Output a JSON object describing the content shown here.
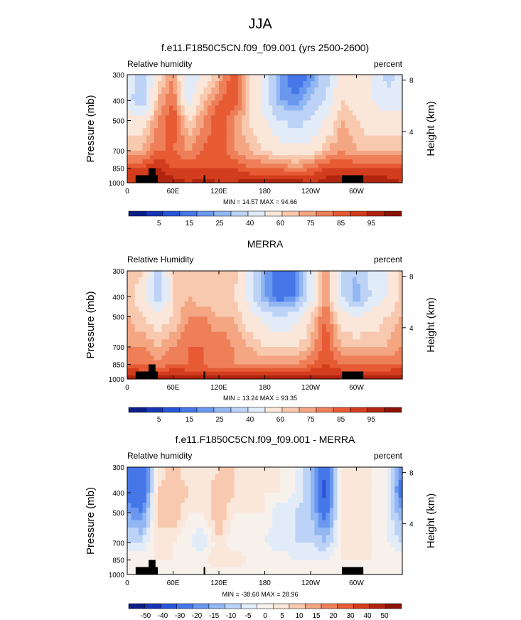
{
  "figure_title": "JJA",
  "colors": {
    "humidity_palette": [
      "#0c1f88",
      "#1734b4",
      "#2a55d8",
      "#4677e8",
      "#6a98ef",
      "#92b7f3",
      "#bcd2f6",
      "#e2ebf8",
      "#fbe6da",
      "#f8c9ae",
      "#f4a683",
      "#ee7f58",
      "#e65a34",
      "#d23d1d",
      "#b1250e",
      "#8a1206"
    ],
    "difference_palette": [
      "#0c1f88",
      "#1734b4",
      "#2a55d8",
      "#4677e8",
      "#6a98ef",
      "#92b7f3",
      "#bcd2f6",
      "#e2ebf8",
      "#f7f1ec",
      "#fbe6da",
      "#f8c9ae",
      "#f4a683",
      "#ee7f58",
      "#e65a34",
      "#d23d1d",
      "#b1250e",
      "#8a1206"
    ],
    "topography": "#000000"
  },
  "chart_data": [
    {
      "type": "heatmap",
      "title": "f.e11.F1850C5CN.f09_f09.001 (yrs 2500-2600)",
      "left_label": "Relative humidity",
      "right_label": "percent",
      "ylabel": "Pressure (mb)",
      "y2label": "Height (km)",
      "x_ticks": [
        "0",
        "60E",
        "120E",
        "180",
        "120W",
        "60W"
      ],
      "y_ticks": [
        "300",
        "400",
        "500",
        "700",
        "850",
        "1000"
      ],
      "y2_ticks": [
        "8",
        "4"
      ],
      "stats": "MIN = 14.57  MAX = 94.66",
      "min": 14.57,
      "max": 94.66,
      "colorbar_labels": [
        "5",
        "15",
        "25",
        "40",
        "60",
        "75",
        "85",
        "95"
      ],
      "colorbar_levels": [
        0,
        5,
        10,
        15,
        20,
        25,
        30,
        40,
        50,
        60,
        65,
        70,
        75,
        80,
        85,
        90,
        95,
        100
      ],
      "pressure_levels": [
        300,
        400,
        500,
        700,
        850,
        1000
      ],
      "grid": "lon 0-360 (15 deg) x 6 pressure levels",
      "values": [
        [
          45,
          35,
          55,
          70,
          40,
          50,
          65,
          80,
          60,
          45,
          25,
          15,
          20,
          35,
          55,
          55,
          50,
          35
        ],
        [
          45,
          30,
          65,
          75,
          45,
          65,
          75,
          80,
          60,
          45,
          25,
          20,
          30,
          40,
          60,
          55,
          50,
          45
        ],
        [
          55,
          55,
          70,
          80,
          60,
          70,
          80,
          70,
          60,
          50,
          40,
          35,
          40,
          50,
          65,
          60,
          55,
          55
        ],
        [
          65,
          65,
          75,
          75,
          70,
          75,
          80,
          70,
          65,
          60,
          55,
          55,
          55,
          65,
          70,
          65,
          65,
          65
        ],
        [
          80,
          80,
          85,
          80,
          80,
          80,
          80,
          80,
          75,
          75,
          75,
          70,
          75,
          80,
          80,
          80,
          80,
          80
        ],
        [
          85,
          85,
          90,
          88,
          85,
          88,
          85,
          85,
          88,
          88,
          88,
          88,
          85,
          88,
          88,
          88,
          88,
          88
        ]
      ]
    },
    {
      "type": "heatmap",
      "title": "MERRA",
      "left_label": "Relative Humidity",
      "right_label": "percent",
      "ylabel": "Pressure (mb)",
      "y2label": "Height (km)",
      "x_ticks": [
        "0",
        "60E",
        "120E",
        "180",
        "120W",
        "60W"
      ],
      "y_ticks": [
        "300",
        "400",
        "500",
        "700",
        "850",
        "1000"
      ],
      "y2_ticks": [
        "8",
        "4"
      ],
      "stats": "MIN = 13.24  MAX = 93.35",
      "min": 13.24,
      "max": 93.35,
      "colorbar_labels": [
        "5",
        "15",
        "25",
        "40",
        "60",
        "75",
        "85",
        "95"
      ],
      "colorbar_levels": [
        0,
        5,
        10,
        15,
        20,
        25,
        30,
        40,
        50,
        60,
        65,
        70,
        75,
        80,
        85,
        90,
        95,
        100
      ],
      "pressure_levels": [
        300,
        400,
        500,
        700,
        850,
        1000
      ],
      "values": [
        [
          65,
          60,
          35,
          60,
          65,
          65,
          60,
          65,
          45,
          25,
          15,
          20,
          45,
          70,
          40,
          30,
          45,
          50
        ],
        [
          65,
          55,
          30,
          60,
          65,
          60,
          60,
          60,
          45,
          25,
          15,
          20,
          45,
          70,
          40,
          25,
          40,
          50
        ],
        [
          65,
          60,
          55,
          60,
          70,
          70,
          65,
          65,
          55,
          45,
          40,
          45,
          60,
          75,
          55,
          50,
          55,
          60
        ],
        [
          70,
          70,
          65,
          70,
          75,
          75,
          75,
          70,
          65,
          60,
          60,
          60,
          65,
          80,
          65,
          65,
          65,
          65
        ],
        [
          75,
          75,
          70,
          75,
          75,
          75,
          70,
          70,
          70,
          70,
          70,
          70,
          75,
          80,
          75,
          75,
          75,
          75
        ],
        [
          90,
          88,
          90,
          90,
          88,
          88,
          88,
          88,
          88,
          88,
          88,
          88,
          88,
          88,
          88,
          88,
          88,
          88
        ]
      ]
    },
    {
      "type": "heatmap",
      "title": "f.e11.F1850C5CN.f09_f09.001 - MERRA",
      "left_label": "Relative humidity",
      "right_label": "percent",
      "ylabel": "Pressure (mb)",
      "y2label": "Height (km)",
      "x_ticks": [
        "0",
        "60E",
        "120E",
        "180",
        "120W",
        "60W"
      ],
      "y_ticks": [
        "300",
        "400",
        "500",
        "700",
        "850",
        "1000"
      ],
      "y2_ticks": [
        "8",
        "4"
      ],
      "stats": "MIN = -38.60  MAX = 28.96",
      "min": -38.6,
      "max": 28.96,
      "colorbar_labels": [
        "-50",
        "-40",
        "-30",
        "-20",
        "-15",
        "-10",
        "-5",
        "0",
        "5",
        "10",
        "15",
        "20",
        "30",
        "40",
        "50"
      ],
      "colorbar_levels": [
        -60,
        -50,
        -40,
        -30,
        -20,
        -15,
        -10,
        -5,
        0,
        5,
        10,
        15,
        20,
        30,
        40,
        50,
        60
      ],
      "pressure_levels": [
        300,
        400,
        500,
        700,
        850,
        1000
      ],
      "values": [
        [
          -20,
          -30,
          5,
          15,
          5,
          5,
          10,
          10,
          5,
          5,
          5,
          0,
          -10,
          -30,
          10,
          5,
          5,
          0
        ],
        [
          -25,
          -30,
          10,
          15,
          10,
          5,
          15,
          10,
          5,
          5,
          5,
          0,
          -10,
          -35,
          5,
          5,
          5,
          0
        ],
        [
          -15,
          -20,
          10,
          15,
          5,
          5,
          15,
          5,
          5,
          5,
          -5,
          -5,
          -10,
          -25,
          5,
          10,
          5,
          0
        ],
        [
          -5,
          -5,
          10,
          5,
          0,
          -5,
          10,
          0,
          0,
          0,
          -5,
          -5,
          -5,
          -10,
          5,
          10,
          5,
          0
        ],
        [
          5,
          5,
          5,
          5,
          5,
          5,
          10,
          10,
          5,
          5,
          5,
          0,
          0,
          0,
          5,
          5,
          5,
          5
        ],
        [
          0,
          0,
          0,
          0,
          0,
          0,
          0,
          0,
          0,
          0,
          0,
          0,
          0,
          0,
          0,
          0,
          0,
          0
        ]
      ]
    }
  ]
}
